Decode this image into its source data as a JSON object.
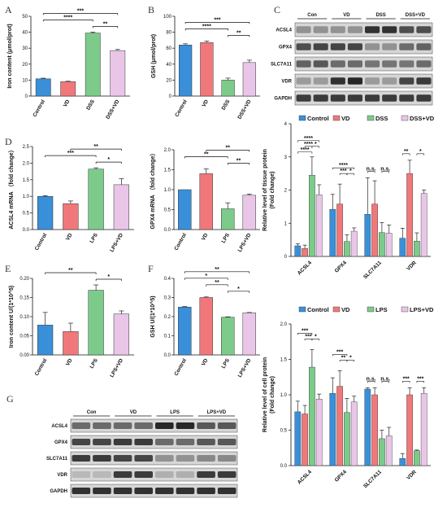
{
  "panels": {
    "A": "A",
    "B": "B",
    "C": "C",
    "D": "D",
    "E": "E",
    "F": "F",
    "G": "G"
  },
  "blot_C": {
    "groups": [
      "Con",
      "VD",
      "DSS",
      "DSS+VD"
    ],
    "proteins": [
      "ACSL4",
      "GPX4",
      "SLC7A11",
      "VDR",
      "GAPDH"
    ]
  },
  "blot_G": {
    "groups": [
      "Con",
      "VD",
      "LPS",
      "LPS+VD"
    ],
    "proteins": [
      "ACSL4",
      "GPX4",
      "SLC7A11",
      "VDR",
      "GAPDH"
    ]
  },
  "colors": {
    "blue": "#3A8FD9",
    "red": "#F0787A",
    "green": "#7CCB8A",
    "pink": "#E9C6E8"
  },
  "chart_data": [
    {
      "id": "A",
      "type": "bar",
      "categories": [
        "Control",
        "VD",
        "DSS",
        "DSS+VD"
      ],
      "values": [
        10.8,
        9.0,
        39.5,
        28.5
      ],
      "errors": [
        0.4,
        0.3,
        0.6,
        0.7
      ],
      "ylabel": "Iron content (μmol/prot)",
      "ylim": [
        0,
        50
      ],
      "yticks": [
        "0",
        "10",
        "20",
        "30",
        "40",
        "50"
      ],
      "significance": [
        {
          "from": 0,
          "to": 3,
          "label": "***"
        },
        {
          "from": 0,
          "to": 2,
          "label": "****"
        },
        {
          "from": 2,
          "to": 3,
          "label": "**"
        }
      ]
    },
    {
      "id": "B",
      "type": "bar",
      "categories": [
        "Control",
        "VD",
        "DSS",
        "DSS+VD"
      ],
      "values": [
        64,
        67,
        20,
        42
      ],
      "errors": [
        1.5,
        2.0,
        2.5,
        3.0
      ],
      "ylabel": "GSH (μmol/prot)",
      "ylim": [
        0,
        100
      ],
      "yticks": [
        "0",
        "20",
        "40",
        "60",
        "80",
        "100"
      ],
      "significance": [
        {
          "from": 0,
          "to": 3,
          "label": "***"
        },
        {
          "from": 0,
          "to": 2,
          "label": "****"
        },
        {
          "from": 2,
          "to": 3,
          "label": "**"
        }
      ]
    },
    {
      "id": "D1",
      "type": "bar",
      "categories": [
        "Control",
        "VD",
        "LPS",
        "LPS+VD"
      ],
      "values": [
        1.0,
        0.78,
        1.82,
        1.35
      ],
      "errors": [
        0.02,
        0.08,
        0.04,
        0.18
      ],
      "ylabel": "ACSL4 mRNA （fold change）",
      "ylim": [
        0,
        2.5
      ],
      "yticks": [
        "0.0",
        "0.5",
        "1.0",
        "1.5",
        "2.0",
        "2.5"
      ],
      "significance": [
        {
          "from": 1,
          "to": 3,
          "label": "**"
        },
        {
          "from": 0,
          "to": 2,
          "label": "***"
        },
        {
          "from": 2,
          "to": 3,
          "label": "*"
        }
      ]
    },
    {
      "id": "D2",
      "type": "bar",
      "categories": [
        "Control",
        "VD",
        "LPS",
        "LPS+VD"
      ],
      "values": [
        1.0,
        1.4,
        0.52,
        0.86
      ],
      "errors": [
        0.0,
        0.12,
        0.15,
        0.03
      ],
      "ylabel": "GPX4 mRNA （fold change）",
      "ylim": [
        0,
        2.0
      ],
      "yticks": [
        "0.0",
        "0.5",
        "1.0",
        "1.5",
        "2.0"
      ],
      "significance": [
        {
          "from": 1,
          "to": 3,
          "label": "**"
        },
        {
          "from": 0,
          "to": 2,
          "label": "**"
        },
        {
          "from": 2,
          "to": 3,
          "label": "**"
        }
      ]
    },
    {
      "id": "E",
      "type": "bar",
      "categories": [
        "Control",
        "VD",
        "LPS",
        "LPS+VD"
      ],
      "values": [
        0.078,
        0.061,
        0.169,
        0.107
      ],
      "errors": [
        0.033,
        0.022,
        0.014,
        0.008
      ],
      "ylabel": "Iron content  U/(1*10^5)",
      "ylim": [
        0,
        0.2
      ],
      "yticks": [
        "0.00",
        "0.05",
        "0.10",
        "0.15",
        "0.20"
      ],
      "significance": [
        {
          "from": 0,
          "to": 2,
          "label": "**"
        },
        {
          "from": 2,
          "to": 3,
          "label": "*"
        }
      ]
    },
    {
      "id": "F",
      "type": "bar",
      "categories": [
        "Control",
        "VD",
        "LPS",
        "LPS+VD"
      ],
      "values": [
        0.25,
        0.3,
        0.197,
        0.22
      ],
      "errors": [
        0.003,
        0.003,
        0.002,
        0.002
      ],
      "ylabel": "GSH  U/(1*10^5)",
      "ylim": [
        0,
        0.4
      ],
      "yticks": [
        "0.0",
        "0.1",
        "0.2",
        "0.3",
        "0.4"
      ],
      "significance": [
        {
          "from": 0,
          "to": 3,
          "label": "**"
        },
        {
          "from": 0,
          "to": 2,
          "label": "*"
        },
        {
          "from": 1,
          "to": 2,
          "label": "**"
        },
        {
          "from": 2,
          "to": 3,
          "label": "*"
        }
      ]
    },
    {
      "id": "C_quant",
      "type": "bar",
      "legend": [
        "Control",
        "VD",
        "DSS",
        "DSS+VD"
      ],
      "categories": [
        "ACSL4",
        "GPX4",
        "SLC7A11",
        "VDR"
      ],
      "series": [
        {
          "name": "Control",
          "values": [
            0.32,
            1.42,
            1.27,
            0.55
          ],
          "errors": [
            0.06,
            0.45,
            1.1,
            0.3
          ]
        },
        {
          "name": "VD",
          "values": [
            0.24,
            1.58,
            1.58,
            2.5
          ],
          "errors": [
            0.1,
            0.6,
            0.7,
            0.4
          ]
        },
        {
          "name": "DSS",
          "values": [
            2.45,
            0.45,
            0.72,
            0.46
          ],
          "errors": [
            0.55,
            0.2,
            0.3,
            0.25
          ]
        },
        {
          "name": "DSS+VD",
          "values": [
            1.86,
            0.76,
            0.7,
            1.9
          ],
          "errors": [
            0.3,
            0.1,
            0.25,
            0.1
          ]
        }
      ],
      "ylabel": "Relative level of tissue protein\n(Fold change)",
      "ylim": [
        0,
        4
      ],
      "yticks": [
        "0",
        "1",
        "2",
        "3",
        "4"
      ],
      "significance": [
        {
          "group": 0,
          "from": 0,
          "to": 3,
          "label": "****",
          "level": 0
        },
        {
          "group": 0,
          "from": 1,
          "to": 2,
          "label": "****",
          "level": 1
        },
        {
          "group": 0,
          "from": 2,
          "to": 3,
          "label": "*",
          "level": 1
        },
        {
          "group": 0,
          "from": 0,
          "to": 2,
          "label": "****",
          "level": 2
        },
        {
          "group": 1,
          "from": 0,
          "to": 3,
          "label": "****",
          "level": 0
        },
        {
          "group": 1,
          "from": 1,
          "to": 2,
          "label": "***",
          "level": 1
        },
        {
          "group": 1,
          "from": 2,
          "to": 3,
          "label": "*",
          "level": 1
        },
        {
          "group": 2,
          "from": 0,
          "to": 1,
          "label": "n.s.",
          "level": 0
        },
        {
          "group": 2,
          "from": 2,
          "to": 3,
          "label": "n.s.",
          "level": 0
        },
        {
          "group": 3,
          "from": 0,
          "to": 1,
          "label": "**",
          "level": 0
        },
        {
          "group": 3,
          "from": 2,
          "to": 3,
          "label": "*",
          "level": 0
        }
      ]
    },
    {
      "id": "G_quant",
      "type": "bar",
      "legend": [
        "Control",
        "VD",
        "LPS",
        "LPS+VD"
      ],
      "categories": [
        "ACSL4",
        "GPX4",
        "SLC7A11",
        "VDR"
      ],
      "series": [
        {
          "name": "Control",
          "values": [
            0.76,
            1.02,
            1.08,
            0.1
          ],
          "errors": [
            0.15,
            0.22,
            0.02,
            0.07
          ]
        },
        {
          "name": "VD",
          "values": [
            0.73,
            1.12,
            1.0,
            1.0
          ],
          "errors": [
            0.12,
            0.22,
            0.1,
            0.1
          ]
        },
        {
          "name": "LPS",
          "values": [
            1.39,
            0.75,
            0.38,
            0.21
          ],
          "errors": [
            0.25,
            0.2,
            0.12,
            0.01
          ]
        },
        {
          "name": "LPS+VD",
          "values": [
            0.94,
            0.9,
            0.42,
            1.02
          ],
          "errors": [
            0.07,
            0.08,
            0.12,
            0.08
          ]
        }
      ],
      "ylabel": "Relative level of cell protein\n(Fold change)",
      "ylim": [
        0,
        2.0
      ],
      "yticks": [
        "0.0",
        "0.5",
        "1.0",
        "1.5",
        "2.0"
      ],
      "significance": [
        {
          "group": 0,
          "from": 0,
          "to": 2,
          "label": "***",
          "level": 0
        },
        {
          "group": 0,
          "from": 1,
          "to": 2,
          "label": "***",
          "level": 1
        },
        {
          "group": 0,
          "from": 2,
          "to": 3,
          "label": "*",
          "level": 1
        },
        {
          "group": 1,
          "from": 0,
          "to": 2,
          "label": "***",
          "level": 0
        },
        {
          "group": 1,
          "from": 1,
          "to": 2,
          "label": "**",
          "level": 1
        },
        {
          "group": 1,
          "from": 2,
          "to": 3,
          "label": "*",
          "level": 1
        },
        {
          "group": 2,
          "from": 0,
          "to": 1,
          "label": "n.s.",
          "level": 0
        },
        {
          "group": 2,
          "from": 2,
          "to": 3,
          "label": "n.s.",
          "level": 0
        },
        {
          "group": 3,
          "from": 0,
          "to": 1,
          "label": "***",
          "level": 0
        },
        {
          "group": 3,
          "from": 2,
          "to": 3,
          "label": "***",
          "level": 0
        }
      ]
    }
  ]
}
